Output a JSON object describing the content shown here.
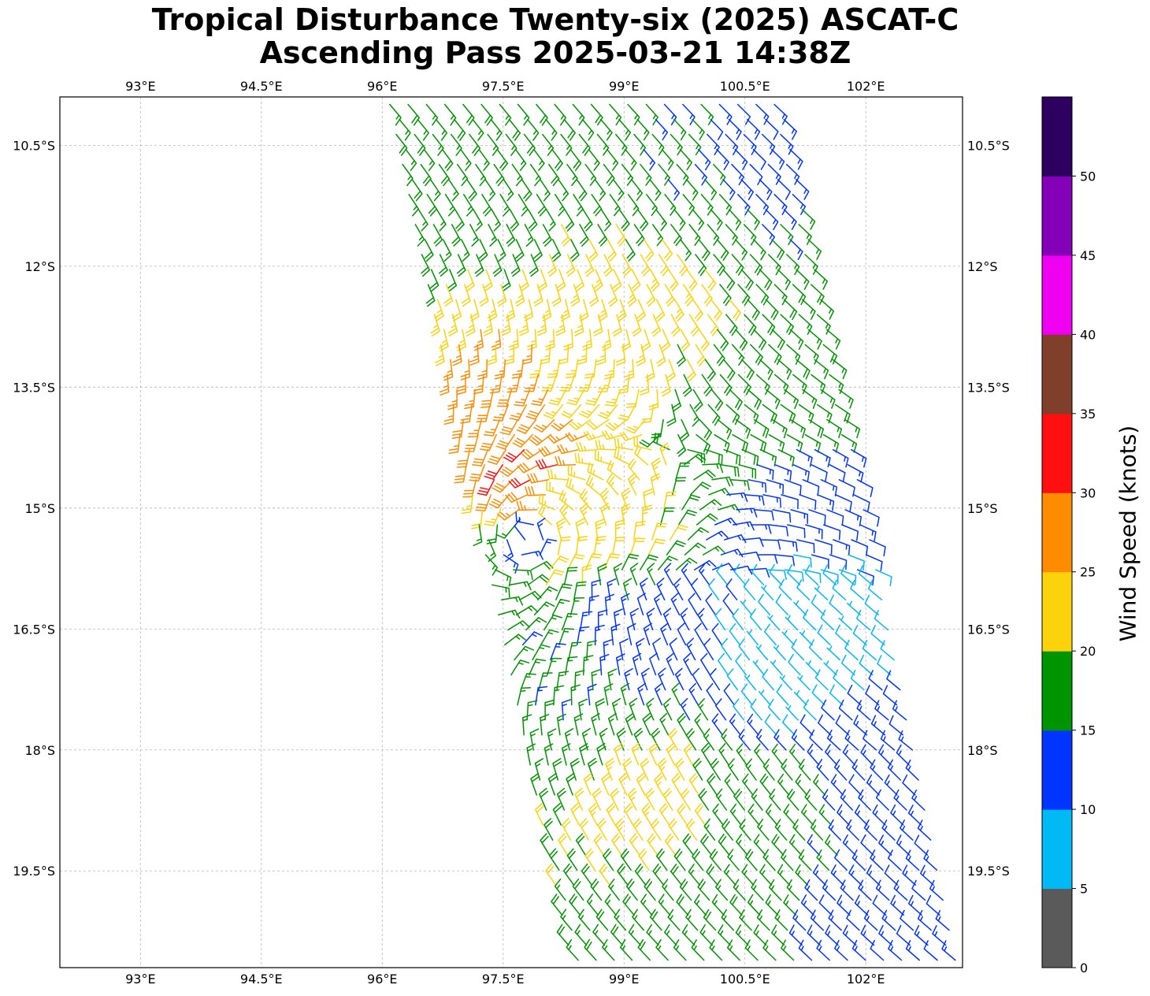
{
  "title": {
    "line1": "Tropical Disturbance Twenty-six (2025) ASCAT-C",
    "line2": "Ascending Pass 2025-03-21 14:38Z"
  },
  "map": {
    "lon_range": [
      92.0,
      103.2
    ],
    "lat_range": [
      -20.7,
      -9.9
    ],
    "lon_ticks": [
      {
        "value": 93.0,
        "label": "93°E"
      },
      {
        "value": 94.5,
        "label": "94.5°E"
      },
      {
        "value": 96.0,
        "label": "96°E"
      },
      {
        "value": 97.5,
        "label": "97.5°E"
      },
      {
        "value": 99.0,
        "label": "99°E"
      },
      {
        "value": 100.5,
        "label": "100.5°E"
      },
      {
        "value": 102.0,
        "label": "102°E"
      }
    ],
    "lat_ticks": [
      {
        "value": -10.5,
        "label": "10.5°S"
      },
      {
        "value": -12.0,
        "label": "12°S"
      },
      {
        "value": -13.5,
        "label": "13.5°S"
      },
      {
        "value": -15.0,
        "label": "15°S"
      },
      {
        "value": -16.5,
        "label": "16.5°S"
      },
      {
        "value": -18.0,
        "label": "18°S"
      },
      {
        "value": -19.5,
        "label": "19.5°S"
      }
    ],
    "swath_corners": [
      [
        96.0,
        -9.9
      ],
      [
        101.0,
        -9.9
      ],
      [
        103.2,
        -20.7
      ],
      [
        98.3,
        -20.7
      ]
    ],
    "circulation_center": [
      97.75,
      -15.4
    ]
  },
  "chart_data": {
    "type": "wind_barbs",
    "variable": "ASCAT-C scatterometer winds",
    "units": "knots",
    "colorbar": {
      "label": "Wind Speed (knots)",
      "ticks": [
        0,
        5,
        10,
        15,
        20,
        25,
        30,
        35,
        40,
        45,
        50
      ],
      "bins": [
        {
          "min": 0,
          "max": 5,
          "color": "#5a5a5a"
        },
        {
          "min": 5,
          "max": 10,
          "color": "#00b9f5"
        },
        {
          "min": 10,
          "max": 15,
          "color": "#0034ff"
        },
        {
          "min": 15,
          "max": 20,
          "color": "#009400"
        },
        {
          "min": 20,
          "max": 25,
          "color": "#fcd20d"
        },
        {
          "min": 25,
          "max": 30,
          "color": "#ff8c00"
        },
        {
          "min": 30,
          "max": 35,
          "color": "#ff0f0f"
        },
        {
          "min": 35,
          "max": 40,
          "color": "#7f3f2b"
        },
        {
          "min": 40,
          "max": 45,
          "color": "#f000f0"
        },
        {
          "min": 45,
          "max": 50,
          "color": "#8300b8"
        },
        {
          "min": 50,
          "max": 55,
          "color": "#2d005f"
        }
      ]
    },
    "regions": [
      {
        "lon": 97.2,
        "lat": -10.8,
        "speed": 17
      },
      {
        "lon": 99.6,
        "lat": -10.9,
        "speed": 16
      },
      {
        "lon": 100.6,
        "lat": -10.3,
        "speed": 13
      },
      {
        "lon": 99.2,
        "lat": -12.3,
        "speed": 22
      },
      {
        "lon": 98.6,
        "lat": -13.3,
        "speed": 23
      },
      {
        "lon": 97.6,
        "lat": -13.9,
        "speed": 27
      },
      {
        "lon": 97.7,
        "lat": -14.4,
        "speed": 31
      },
      {
        "lon": 98.6,
        "lat": -15.1,
        "speed": 23
      },
      {
        "lon": 100.3,
        "lat": -13.9,
        "speed": 18
      },
      {
        "lon": 101.2,
        "lat": -13.6,
        "speed": 17
      },
      {
        "lon": 101.3,
        "lat": -14.9,
        "speed": 12
      },
      {
        "lon": 101.2,
        "lat": -16.3,
        "speed": 8
      },
      {
        "lon": 101.1,
        "lat": -17.0,
        "speed": 7
      },
      {
        "lon": 99.2,
        "lat": -16.7,
        "speed": 13
      },
      {
        "lon": 98.3,
        "lat": -17.5,
        "speed": 16
      },
      {
        "lon": 99.3,
        "lat": -18.7,
        "speed": 22
      },
      {
        "lon": 100.8,
        "lat": -18.8,
        "speed": 17
      },
      {
        "lon": 102.3,
        "lat": -18.2,
        "speed": 13
      },
      {
        "lon": 99.6,
        "lat": -20.4,
        "speed": 17
      },
      {
        "lon": 102.4,
        "lat": -20.0,
        "speed": 13
      },
      {
        "lon": 97.0,
        "lat": -15.6,
        "speed": 16
      }
    ],
    "cyclone": {
      "lon": 97.75,
      "lat": -15.4,
      "speed": 14
    }
  }
}
